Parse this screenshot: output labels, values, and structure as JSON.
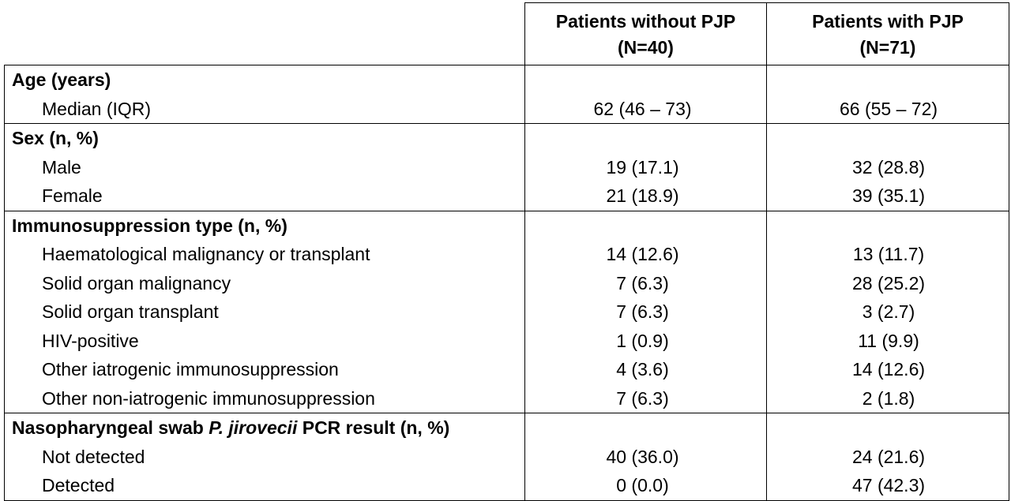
{
  "header": {
    "col1_line1": "Patients without PJP",
    "col1_line2": "(N=40)",
    "col2_line1": "Patients with PJP",
    "col2_line2": "(N=71)"
  },
  "sections": {
    "age": {
      "title": "Age (years)",
      "rows": [
        {
          "label": "Median (IQR)",
          "without": "62 (46 – 73)",
          "with": "66 (55 – 72)"
        }
      ]
    },
    "sex": {
      "title": "Sex (n, %)",
      "rows": [
        {
          "label": "Male",
          "without": "19 (17.1)",
          "with": "32 (28.8)"
        },
        {
          "label": "Female",
          "without": "21 (18.9)",
          "with": "39 (35.1)"
        }
      ]
    },
    "immuno": {
      "title": "Immunosuppression type (n, %)",
      "rows": [
        {
          "label": "Haematological malignancy or transplant",
          "without": "14 (12.6)",
          "with": "13 (11.7)"
        },
        {
          "label": "Solid organ malignancy",
          "without": "7 (6.3)",
          "with": "28 (25.2)"
        },
        {
          "label": "Solid organ transplant",
          "without": "7 (6.3)",
          "with": "3 (2.7)"
        },
        {
          "label": "HIV-positive",
          "without": "1 (0.9)",
          "with": "11 (9.9)"
        },
        {
          "label": "Other iatrogenic immunosuppression",
          "without": "4 (3.6)",
          "with": "14 (12.6)"
        },
        {
          "label": "Other non-iatrogenic immunosuppression",
          "without": "7 (6.3)",
          "with": "2 (1.8)"
        }
      ]
    },
    "pcr": {
      "title_pre": "Nasopharyngeal swab ",
      "title_italic": "P. jirovecii",
      "title_post": " PCR result (n, %)",
      "rows": [
        {
          "label": "Not detected",
          "without": "40 (36.0)",
          "with": "24 (21.6)"
        },
        {
          "label": "Detected",
          "without": "0 (0.0)",
          "with": "47 (42.3)"
        }
      ]
    }
  }
}
